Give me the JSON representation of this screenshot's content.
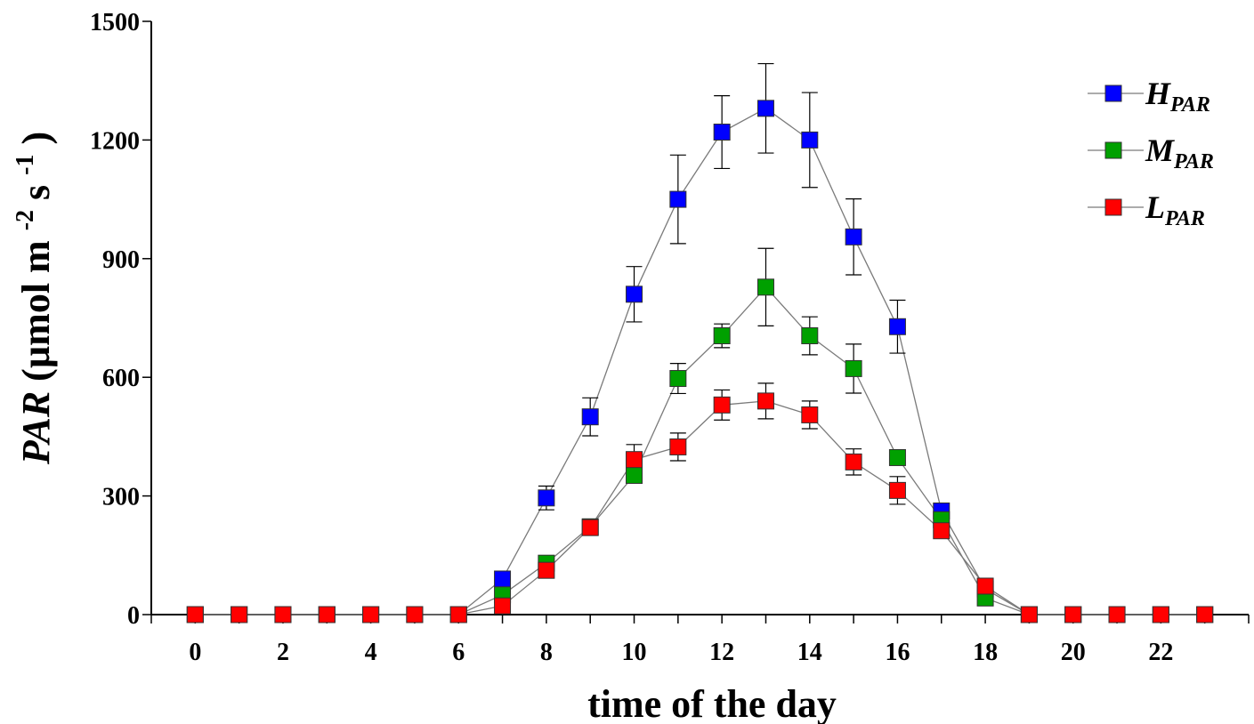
{
  "chart_data": {
    "type": "line",
    "xlabel": "time of the day",
    "ylabel": {
      "italic": "PAR",
      "unit_prefix": " (µmol m",
      "exp1": "-2",
      "unit_mid": " s",
      "exp2": "-1",
      "unit_suffix": ")"
    },
    "xlim": [
      -1,
      24
    ],
    "ylim": [
      0,
      1500
    ],
    "x_ticks": [
      0,
      2,
      4,
      6,
      8,
      10,
      12,
      14,
      16,
      18,
      20,
      22
    ],
    "y_ticks": [
      0,
      300,
      600,
      900,
      1200,
      1500
    ],
    "x": [
      0,
      1,
      2,
      3,
      4,
      5,
      6,
      7,
      8,
      9,
      10,
      11,
      12,
      13,
      14,
      15,
      16,
      17,
      18,
      19,
      20,
      21,
      22,
      23
    ],
    "series": [
      {
        "name": "H",
        "subscript": "PAR",
        "color": "#0000ff",
        "values": [
          0,
          0,
          0,
          0,
          0,
          0,
          0,
          90,
          295,
          500,
          810,
          1050,
          1220,
          1280,
          1200,
          955,
          728,
          262,
          65,
          0,
          0,
          0,
          0,
          0
        ],
        "error": [
          0,
          0,
          0,
          0,
          0,
          0,
          0,
          0,
          30,
          48,
          70,
          112,
          92,
          113,
          120,
          96,
          67,
          0,
          0,
          0,
          0,
          0,
          0,
          0
        ]
      },
      {
        "name": "M",
        "subscript": "PAR",
        "color": "#00a000",
        "values": [
          0,
          0,
          0,
          0,
          0,
          0,
          0,
          50,
          130,
          222,
          352,
          597,
          705,
          828,
          705,
          622,
          397,
          240,
          42,
          0,
          0,
          0,
          0,
          0
        ],
        "error": [
          0,
          0,
          0,
          0,
          0,
          0,
          0,
          0,
          0,
          0,
          0,
          38,
          30,
          98,
          48,
          62,
          0,
          0,
          0,
          0,
          0,
          0,
          0,
          0
        ]
      },
      {
        "name": "L",
        "subscript": "PAR",
        "color": "#ff0000",
        "values": [
          0,
          0,
          0,
          0,
          0,
          0,
          0,
          22,
          112,
          220,
          392,
          424,
          530,
          540,
          505,
          386,
          314,
          212,
          72,
          0,
          0,
          0,
          0,
          0
        ],
        "error": [
          0,
          0,
          0,
          0,
          0,
          0,
          0,
          0,
          0,
          0,
          38,
          35,
          38,
          45,
          35,
          33,
          35,
          0,
          0,
          0,
          0,
          0,
          0,
          0
        ]
      }
    ],
    "legend_position": "top-right",
    "grid": false
  }
}
